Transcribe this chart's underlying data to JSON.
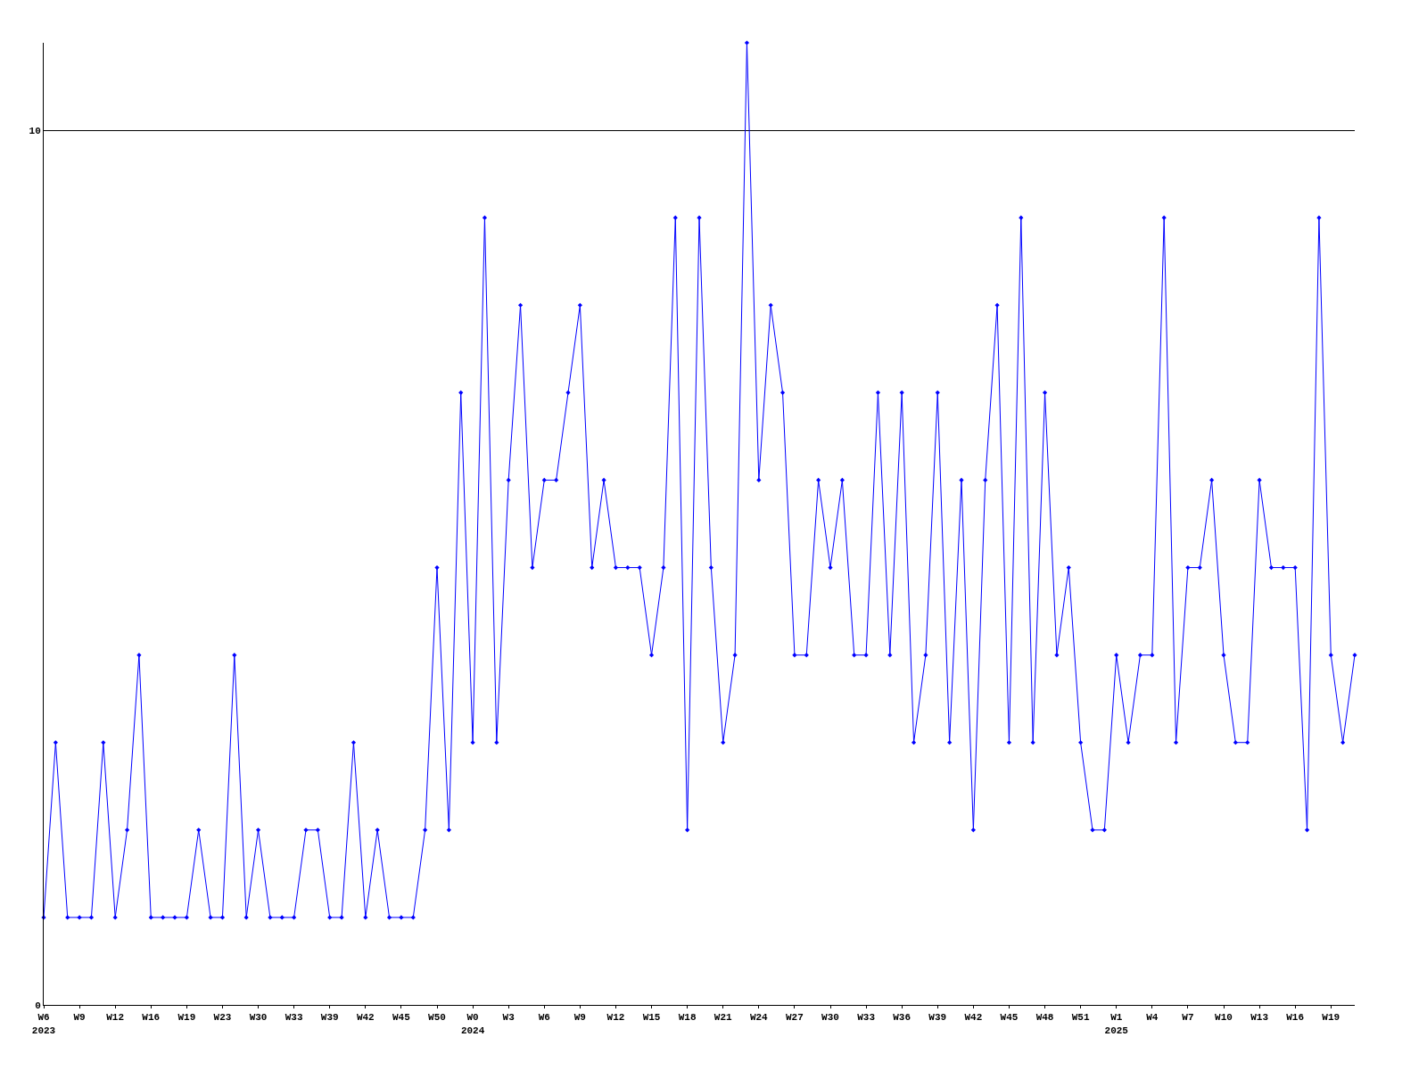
{
  "chart_data": {
    "type": "line",
    "categories": [
      "W6\n2023",
      null,
      null,
      "W9",
      null,
      null,
      "W12",
      null,
      null,
      "W16",
      null,
      null,
      "W19",
      null,
      null,
      "W23",
      null,
      null,
      "W30",
      null,
      null,
      "W33",
      null,
      null,
      "W39",
      null,
      null,
      "W42",
      null,
      null,
      "W45",
      null,
      null,
      "W50",
      null,
      null,
      "W0\n2024",
      null,
      null,
      "W3",
      null,
      null,
      "W6",
      null,
      null,
      "W9",
      null,
      null,
      "W12",
      null,
      null,
      "W15",
      null,
      null,
      "W18",
      null,
      null,
      "W21",
      null,
      null,
      "W24",
      null,
      null,
      "W27",
      null,
      null,
      "W30",
      null,
      null,
      "W33",
      null,
      null,
      "W36",
      null,
      null,
      "W39",
      null,
      null,
      "W42",
      null,
      null,
      "W45",
      null,
      null,
      "W48",
      null,
      null,
      "W51",
      null,
      null,
      "W1\n2025",
      null,
      null,
      "W4",
      null,
      null,
      "W7",
      null,
      null,
      "W10",
      null,
      null,
      "W13",
      null,
      null,
      "W16",
      null,
      null,
      "W19",
      null,
      null
    ],
    "series": [
      {
        "color": "#0000ff",
        "values": [
          1,
          3,
          1,
          1,
          1,
          3,
          1,
          2,
          4,
          1,
          1,
          1,
          1,
          2,
          1,
          1,
          4,
          1,
          2,
          1,
          1,
          1,
          2,
          2,
          1,
          1,
          3,
          1,
          2,
          1,
          1,
          1,
          2,
          5,
          2,
          7,
          3,
          9,
          3,
          6,
          8,
          5,
          6,
          6,
          7,
          8,
          5,
          6,
          5,
          5,
          5,
          4,
          5,
          9,
          2,
          9,
          5,
          3,
          4,
          11,
          6,
          8,
          7,
          4,
          4,
          6,
          5,
          6,
          4,
          4,
          7,
          4,
          7,
          3,
          4,
          7,
          3,
          6,
          2,
          6,
          8,
          3,
          9,
          3,
          7,
          4,
          5,
          3,
          2,
          2,
          4,
          3,
          4,
          4,
          9,
          3,
          5,
          5,
          6,
          4,
          3,
          3,
          6,
          5,
          5,
          5,
          2,
          9,
          4,
          3,
          4
        ]
      }
    ],
    "ylim": [
      0,
      11
    ],
    "yticks": [
      0,
      10
    ],
    "grid": "y",
    "legend": false,
    "marker": "diamond",
    "line_style": "solid"
  }
}
